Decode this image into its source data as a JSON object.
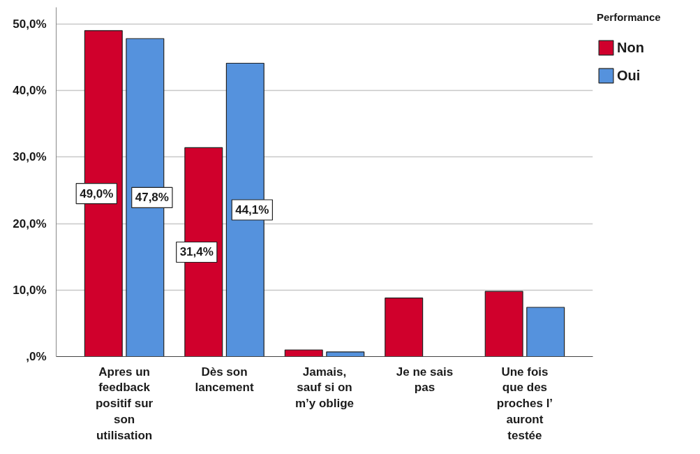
{
  "chart_data": {
    "type": "bar",
    "legend_title": "Performance",
    "legend": "top right",
    "grid": "y",
    "categories": [
      "Apres un feedback positif sur son utilisation",
      "Dès son lancement",
      "Jamais, sauf si on m’y oblige",
      "Je ne sais pas",
      "Une fois que des proches l’ auront testée"
    ],
    "series": [
      {
        "name": "Non",
        "color": "#d0002c",
        "values": [
          49.0,
          31.4,
          1.0,
          8.8,
          9.8
        ],
        "value_labels": [
          "49,0%",
          "31,4%",
          null,
          null,
          null
        ]
      },
      {
        "name": "Oui",
        "color": "#5592dd",
        "values": [
          47.8,
          44.1,
          0.7,
          0.0,
          7.4
        ],
        "value_labels": [
          "47,8%",
          "44,1%",
          null,
          null,
          null
        ]
      }
    ],
    "ylim": [
      0,
      52.5
    ],
    "yticks": [
      {
        "value": 0,
        "label": ",0%"
      },
      {
        "value": 10,
        "label": "10,0%"
      },
      {
        "value": 20,
        "label": "20,0%"
      },
      {
        "value": 30,
        "label": "30,0%"
      },
      {
        "value": 40,
        "label": "40,0%"
      },
      {
        "value": 50,
        "label": "50,0%"
      }
    ]
  }
}
